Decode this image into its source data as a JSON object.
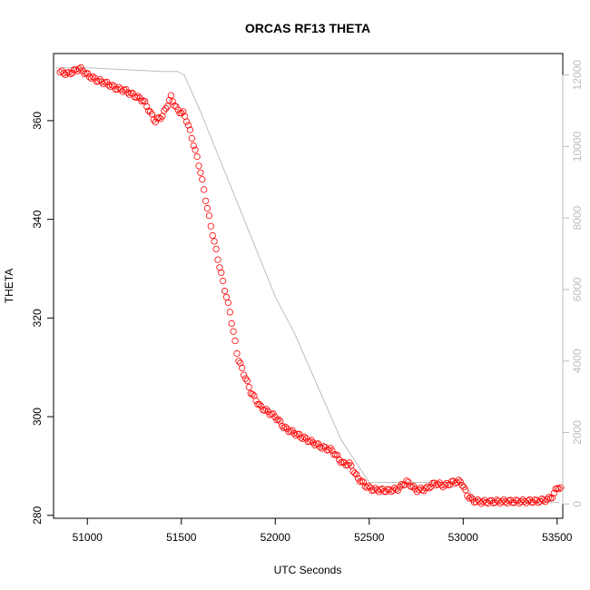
{
  "chart_data": {
    "type": "scatter",
    "title": "ORCAS RF13 THETA",
    "xlabel": "UTC Seconds",
    "ylabel": "THETA",
    "xlim": [
      50820,
      53530
    ],
    "ylim": [
      279.4,
      373.6
    ],
    "x_ticks": [
      51000,
      51500,
      52000,
      52500,
      53000,
      53500
    ],
    "y_ticks": [
      280,
      300,
      320,
      340,
      360
    ],
    "y2lim": [
      -400,
      12600
    ],
    "y2_ticks": [
      0,
      2000,
      4000,
      6000,
      8000,
      10000,
      12000
    ],
    "grid": false,
    "series": [
      {
        "kind": "points",
        "color": "#ff0000",
        "axis": "left",
        "anchors": [
          [
            50855,
            369.8
          ],
          [
            50900,
            369.5
          ],
          [
            50960,
            370.6
          ],
          [
            51000,
            369.3
          ],
          [
            51050,
            368.2
          ],
          [
            51100,
            367.6
          ],
          [
            51150,
            366.6
          ],
          [
            51200,
            366.1
          ],
          [
            51260,
            364.9
          ],
          [
            51300,
            364.0
          ],
          [
            51330,
            362.0
          ],
          [
            51360,
            359.9
          ],
          [
            51400,
            361.0
          ],
          [
            51445,
            364.8
          ],
          [
            51480,
            362.0
          ],
          [
            51510,
            361.5
          ],
          [
            51530,
            360.0
          ],
          [
            51560,
            356.0
          ],
          [
            51600,
            350.0
          ],
          [
            51650,
            340.0
          ],
          [
            51700,
            331.0
          ],
          [
            51760,
            321.0
          ],
          [
            51800,
            312.0
          ],
          [
            51840,
            308.0
          ],
          [
            51870,
            305.0
          ],
          [
            51920,
            302.0
          ],
          [
            52000,
            300.0
          ],
          [
            52050,
            297.7
          ],
          [
            52150,
            295.7
          ],
          [
            52250,
            293.8
          ],
          [
            52300,
            293.2
          ],
          [
            52360,
            290.5
          ],
          [
            52400,
            290.3
          ],
          [
            52430,
            288.0
          ],
          [
            52480,
            286.0
          ],
          [
            52520,
            285.2
          ],
          [
            52600,
            285.0
          ],
          [
            52650,
            285.3
          ],
          [
            52700,
            286.8
          ],
          [
            52750,
            285.1
          ],
          [
            52800,
            285.3
          ],
          [
            52850,
            286.5
          ],
          [
            52900,
            286.0
          ],
          [
            52950,
            286.8
          ],
          [
            52990,
            286.8
          ],
          [
            53020,
            284.2
          ],
          [
            53050,
            283.0
          ],
          [
            53100,
            282.7
          ],
          [
            53200,
            282.8
          ],
          [
            53300,
            282.8
          ],
          [
            53400,
            282.9
          ],
          [
            53450,
            283.2
          ],
          [
            53480,
            284.0
          ],
          [
            53500,
            285.8
          ],
          [
            53520,
            285.3
          ]
        ],
        "count": 290
      },
      {
        "kind": "line",
        "color": "#bdbdbd",
        "axis": "right",
        "x": [
          50830,
          51000,
          51400,
          51450,
          51480,
          51515,
          51600,
          51700,
          51800,
          51900,
          52000,
          52100,
          52200,
          52300,
          52350,
          52400,
          52450,
          52500,
          52520,
          52700,
          52900,
          52990,
          53000,
          53040,
          53080,
          53100,
          53200,
          53260,
          53300,
          53400,
          53450,
          53500,
          53510
        ],
        "y": [
          12200,
          12200,
          12100,
          12100,
          12100,
          12000,
          11000,
          9700,
          8400,
          7100,
          5800,
          4800,
          3600,
          2400,
          1800,
          1400,
          1000,
          600,
          600,
          600,
          600,
          600,
          500,
          300,
          100,
          100,
          100,
          50,
          50,
          50,
          50,
          50,
          50
        ]
      }
    ]
  }
}
